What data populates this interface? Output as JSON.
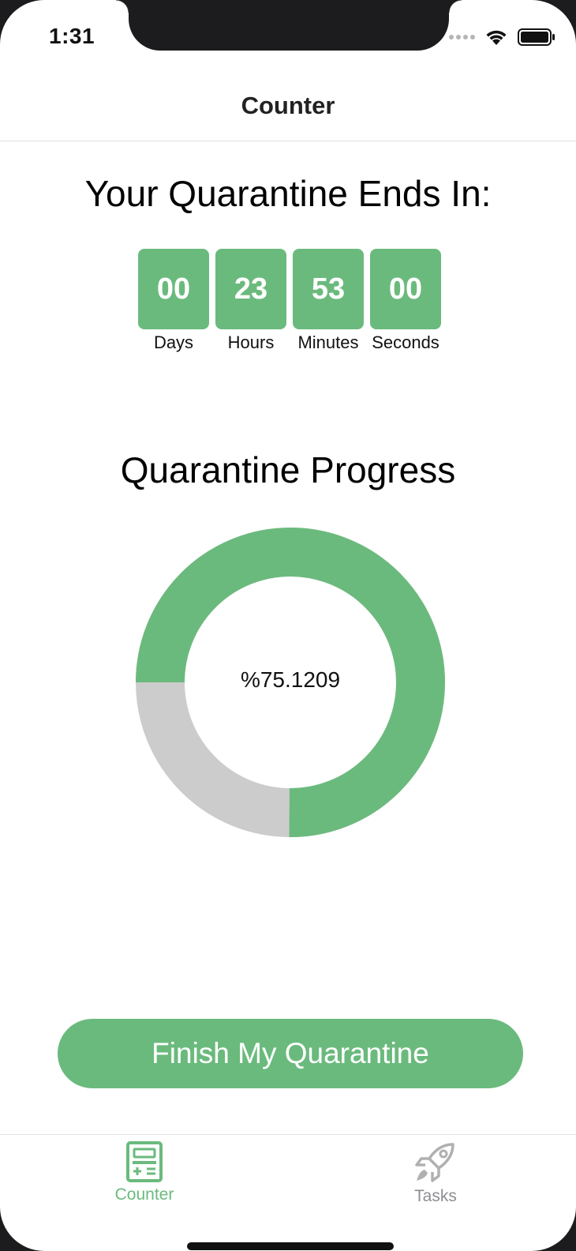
{
  "status_bar": {
    "time": "1:31"
  },
  "nav": {
    "title": "Counter"
  },
  "countdown": {
    "heading": "Your Quarantine Ends In:",
    "units": [
      {
        "value": "00",
        "label": "Days"
      },
      {
        "value": "23",
        "label": "Hours"
      },
      {
        "value": "53",
        "label": "Minutes"
      },
      {
        "value": "00",
        "label": "Seconds"
      }
    ]
  },
  "progress": {
    "heading": "Quarantine Progress",
    "percent_label": "%75.1209",
    "percent_value": 75.1209,
    "fill_color": "#6bba7d",
    "track_color": "#cccccc"
  },
  "actions": {
    "finish_label": "Finish My Quarantine"
  },
  "tabs": [
    {
      "label": "Counter",
      "icon": "calculator-icon",
      "active": true
    },
    {
      "label": "Tasks",
      "icon": "rocket-icon",
      "active": false
    }
  ],
  "colors": {
    "accent": "#6bba7d",
    "inactive": "#8e8e93"
  }
}
